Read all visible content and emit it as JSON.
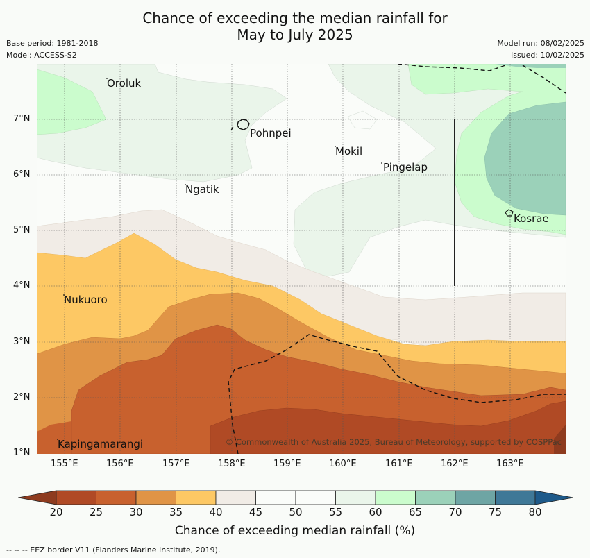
{
  "title_line1": "Chance of exceeding the median rainfall for",
  "title_line2": "May to July 2025",
  "base_period": "Base period: 1981-2018",
  "model": "Model: ACCESS-S2",
  "model_run": "Model run: 08/02/2025",
  "issued": "Issued: 10/02/2025",
  "lat_labels": [
    "1°N",
    "2°N",
    "3°N",
    "4°N",
    "5°N",
    "6°N",
    "7°N"
  ],
  "lon_labels": [
    "155°E",
    "156°E",
    "157°E",
    "158°E",
    "159°E",
    "160°E",
    "161°E",
    "162°E",
    "163°E"
  ],
  "places": {
    "oroluk": "Oroluk",
    "pohnpei": "Pohnpei",
    "mokil": "Mokil",
    "pingelap": "Pingelap",
    "ngatik": "Ngatik",
    "kosrae": "Kosrae",
    "nukuoro": "Nukuoro",
    "kapingamarangi": "Kapingamarangi"
  },
  "copyright": "© Commonwealth of Australia 2025, Bureau of Meteorology, supported by COSPPac",
  "colorbar": {
    "ticks": [
      "20",
      "25",
      "30",
      "35",
      "40",
      "45",
      "50",
      "55",
      "60",
      "65",
      "70",
      "75",
      "80"
    ],
    "colors": [
      "#b04a25",
      "#c8612e",
      "#e09446",
      "#fdc864",
      "#f1ece6",
      "#fafcf9",
      "#fafcf9",
      "#eaf5ea",
      "#cbfccd",
      "#9bd1b9",
      "#6ea5a4",
      "#3f7897"
    ],
    "low_extend_color": "#8e3b1f",
    "high_extend_color": "#1e5a8a",
    "title": "Chance of exceeding median rainfall (%)"
  },
  "footnote": "--  --  -- EEZ border V11 (Flanders Marine Institute, 2019)."
}
